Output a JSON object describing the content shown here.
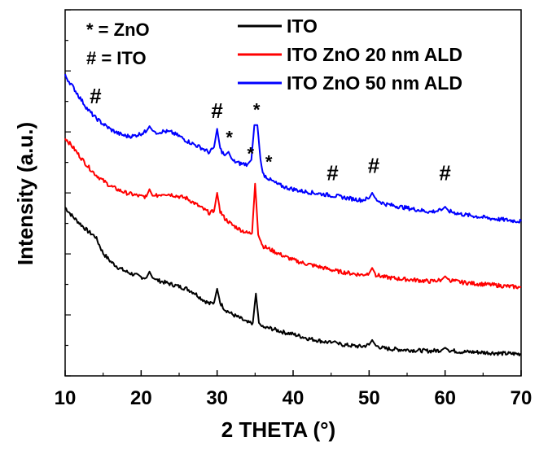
{
  "chart_data": {
    "type": "line",
    "title": "",
    "xlabel": "2 THETA (°)",
    "ylabel": "Intensity (a.u.)",
    "xlim": [
      10,
      70
    ],
    "ylim": [
      0,
      10
    ],
    "x_ticks": [
      10,
      20,
      30,
      40,
      50,
      60,
      70
    ],
    "y_ticks_labeled": false,
    "grid": false,
    "legend_position": "top-right",
    "series": [
      {
        "name": "ITO",
        "color": "#000000",
        "points": [
          [
            10,
            4.6
          ],
          [
            11,
            4.35
          ],
          [
            12,
            4.15
          ],
          [
            13,
            3.95
          ],
          [
            14,
            3.8
          ],
          [
            15,
            3.35
          ],
          [
            16,
            3.12
          ],
          [
            17,
            2.96
          ],
          [
            18,
            2.85
          ],
          [
            19,
            2.77
          ],
          [
            20,
            2.7
          ],
          [
            20.7,
            2.68
          ],
          [
            21.1,
            2.85
          ],
          [
            21.5,
            2.68
          ],
          [
            22,
            2.62
          ],
          [
            23,
            2.56
          ],
          [
            24,
            2.5
          ],
          [
            25,
            2.44
          ],
          [
            26,
            2.38
          ],
          [
            27,
            2.27
          ],
          [
            28,
            2.1
          ],
          [
            29,
            1.97
          ],
          [
            29.6,
            2.0
          ],
          [
            30.0,
            2.38
          ],
          [
            30.4,
            2.0
          ],
          [
            31,
            1.82
          ],
          [
            32,
            1.68
          ],
          [
            33,
            1.58
          ],
          [
            34,
            1.45
          ],
          [
            34.7,
            1.45
          ],
          [
            35.1,
            2.25
          ],
          [
            35.5,
            1.45
          ],
          [
            36,
            1.32
          ],
          [
            37,
            1.3
          ],
          [
            38,
            1.24
          ],
          [
            39,
            1.18
          ],
          [
            40,
            1.14
          ],
          [
            41,
            1.08
          ],
          [
            42,
            1.02
          ],
          [
            43,
            0.98
          ],
          [
            44,
            0.94
          ],
          [
            45,
            0.9
          ],
          [
            45.5,
            0.95
          ],
          [
            46,
            0.87
          ],
          [
            47,
            0.84
          ],
          [
            48,
            0.82
          ],
          [
            49,
            0.8
          ],
          [
            50.0,
            0.85
          ],
          [
            50.4,
            0.98
          ],
          [
            50.9,
            0.82
          ],
          [
            52,
            0.75
          ],
          [
            54,
            0.72
          ],
          [
            56,
            0.7
          ],
          [
            58,
            0.68
          ],
          [
            59.5,
            0.7
          ],
          [
            60,
            0.77
          ],
          [
            60.5,
            0.7
          ],
          [
            62,
            0.66
          ],
          [
            64,
            0.65
          ],
          [
            66,
            0.63
          ],
          [
            68,
            0.61
          ],
          [
            70,
            0.6
          ]
        ]
      },
      {
        "name": "ITO ZnO 20 nm ALD",
        "color": "#ff0000",
        "points": [
          [
            10,
            6.5
          ],
          [
            11,
            6.25
          ],
          [
            12,
            5.98
          ],
          [
            13,
            5.72
          ],
          [
            14,
            5.5
          ],
          [
            15,
            5.33
          ],
          [
            16,
            5.18
          ],
          [
            17,
            5.08
          ],
          [
            18,
            5.0
          ],
          [
            19,
            4.95
          ],
          [
            20,
            4.9
          ],
          [
            20.7,
            4.9
          ],
          [
            21.1,
            5.1
          ],
          [
            21.5,
            4.92
          ],
          [
            22,
            4.92
          ],
          [
            23,
            4.98
          ],
          [
            24,
            4.95
          ],
          [
            25,
            4.9
          ],
          [
            26,
            4.85
          ],
          [
            27,
            4.72
          ],
          [
            28,
            4.58
          ],
          [
            29,
            4.45
          ],
          [
            29.6,
            4.5
          ],
          [
            30.0,
            5.0
          ],
          [
            30.4,
            4.5
          ],
          [
            31,
            4.3
          ],
          [
            32,
            4.12
          ],
          [
            33,
            4.0
          ],
          [
            34,
            3.9
          ],
          [
            34.6,
            3.9
          ],
          [
            35.0,
            5.25
          ],
          [
            35.4,
            3.9
          ],
          [
            36,
            3.55
          ],
          [
            37,
            3.45
          ],
          [
            38,
            3.35
          ],
          [
            39,
            3.25
          ],
          [
            40,
            3.17
          ],
          [
            41,
            3.1
          ],
          [
            42,
            3.05
          ],
          [
            43,
            3.0
          ],
          [
            44,
            2.95
          ],
          [
            45,
            2.9
          ],
          [
            46,
            2.85
          ],
          [
            47,
            2.82
          ],
          [
            48,
            2.79
          ],
          [
            49,
            2.76
          ],
          [
            50.0,
            2.8
          ],
          [
            50.4,
            2.95
          ],
          [
            50.9,
            2.76
          ],
          [
            52,
            2.7
          ],
          [
            54,
            2.65
          ],
          [
            56,
            2.62
          ],
          [
            58,
            2.58
          ],
          [
            59.5,
            2.62
          ],
          [
            60,
            2.72
          ],
          [
            60.5,
            2.62
          ],
          [
            62,
            2.56
          ],
          [
            64,
            2.52
          ],
          [
            66,
            2.49
          ],
          [
            68,
            2.45
          ],
          [
            70,
            2.42
          ]
        ]
      },
      {
        "name": "ITO ZnO 50 nm ALD",
        "color": "#0000ff",
        "points": [
          [
            10,
            8.2
          ],
          [
            11,
            7.9
          ],
          [
            12,
            7.58
          ],
          [
            13,
            7.27
          ],
          [
            14,
            7.05
          ],
          [
            15,
            6.88
          ],
          [
            16,
            6.73
          ],
          [
            17,
            6.62
          ],
          [
            18,
            6.55
          ],
          [
            19,
            6.55
          ],
          [
            20,
            6.62
          ],
          [
            20.7,
            6.68
          ],
          [
            21.1,
            6.82
          ],
          [
            21.5,
            6.7
          ],
          [
            22,
            6.65
          ],
          [
            23,
            6.68
          ],
          [
            24,
            6.65
          ],
          [
            25,
            6.55
          ],
          [
            26,
            6.42
          ],
          [
            27,
            6.32
          ],
          [
            28,
            6.22
          ],
          [
            29,
            6.1
          ],
          [
            29.6,
            6.25
          ],
          [
            30.0,
            6.75
          ],
          [
            30.4,
            6.2
          ],
          [
            31,
            6.02
          ],
          [
            31.5,
            6.12
          ],
          [
            32,
            5.88
          ],
          [
            33,
            5.8
          ],
          [
            34,
            5.78
          ],
          [
            34.5,
            5.9
          ],
          [
            34.9,
            6.85
          ],
          [
            35.3,
            6.85
          ],
          [
            35.7,
            5.92
          ],
          [
            36,
            5.52
          ],
          [
            37,
            5.35
          ],
          [
            38,
            5.23
          ],
          [
            39,
            5.15
          ],
          [
            40,
            5.1
          ],
          [
            41,
            5.05
          ],
          [
            42,
            5.02
          ],
          [
            43,
            4.99
          ],
          [
            44,
            4.96
          ],
          [
            45,
            4.93
          ],
          [
            46,
            4.9
          ],
          [
            47,
            4.86
          ],
          [
            48,
            4.83
          ],
          [
            49,
            4.8
          ],
          [
            50.0,
            4.85
          ],
          [
            50.4,
            5.0
          ],
          [
            50.9,
            4.82
          ],
          [
            52,
            4.7
          ],
          [
            54,
            4.62
          ],
          [
            56,
            4.55
          ],
          [
            58,
            4.48
          ],
          [
            59.5,
            4.52
          ],
          [
            60,
            4.62
          ],
          [
            60.5,
            4.5
          ],
          [
            62,
            4.42
          ],
          [
            64,
            4.36
          ],
          [
            66,
            4.3
          ],
          [
            68,
            4.26
          ],
          [
            70,
            4.22
          ]
        ]
      }
    ],
    "annotations": [
      {
        "text": "#",
        "x": 14,
        "y": 7.45
      },
      {
        "text": "#",
        "x": 30,
        "y": 7.05
      },
      {
        "text": "*",
        "x": 35.2,
        "y": 7.1
      },
      {
        "text": "*",
        "x": 31.6,
        "y": 6.35
      },
      {
        "text": "*",
        "x": 34.4,
        "y": 5.9
      },
      {
        "text": "*",
        "x": 36.8,
        "y": 5.68
      },
      {
        "text": "#",
        "x": 45.2,
        "y": 5.35
      },
      {
        "text": "#",
        "x": 50.6,
        "y": 5.55
      },
      {
        "text": "#",
        "x": 60,
        "y": 5.35
      }
    ],
    "key_text": [
      "* = ZnO",
      "# = ITO"
    ]
  }
}
